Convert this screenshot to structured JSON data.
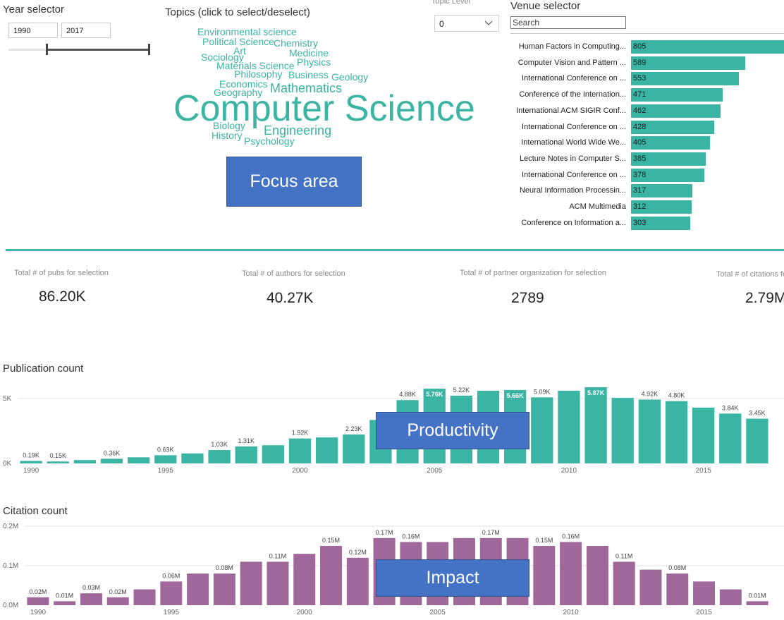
{
  "year_selector": {
    "title": "Year selector",
    "start": "1990",
    "end": "2017",
    "range_min": 1980,
    "range_max": 2017
  },
  "topics": {
    "title": "Topics (click to select/deselect)",
    "words": [
      "Environmental science",
      "Political Science",
      "Chemistry",
      "Art",
      "Medicine",
      "Sociology",
      "Physics",
      "Materials Science",
      "Philosophy",
      "Business",
      "Geology",
      "Economics",
      "Mathematics",
      "Geography",
      "Computer Science",
      "Biology",
      "Engineering",
      "History",
      "Psychology"
    ]
  },
  "topic_level": {
    "title": "Topic Level",
    "value": "0"
  },
  "venue_selector": {
    "title": "Venue selector",
    "search_placeholder": "Search",
    "venues": [
      {
        "name": "Human Factors in Computing...",
        "value": 805
      },
      {
        "name": "Computer Vision and Pattern ...",
        "value": 589
      },
      {
        "name": "International Conference on ...",
        "value": 553
      },
      {
        "name": "Conference of the Internation...",
        "value": 471
      },
      {
        "name": "International ACM SIGIR Conf...",
        "value": 462
      },
      {
        "name": "International Conference on ...",
        "value": 428
      },
      {
        "name": "International World Wide We...",
        "value": 405
      },
      {
        "name": "Lecture Notes in Computer S...",
        "value": 385
      },
      {
        "name": "International Conference on ...",
        "value": 378
      },
      {
        "name": "Neural Information Processin...",
        "value": 317
      },
      {
        "name": "ACM Multimedia",
        "value": 312
      },
      {
        "name": "Conference on Information a...",
        "value": 303
      }
    ]
  },
  "kpis": [
    {
      "label": "Total # of pubs for selection",
      "value": "86.20K"
    },
    {
      "label": "Total # of authors for selection",
      "value": "40.27K"
    },
    {
      "label": "Total # of partner organization for selection",
      "value": "2789"
    },
    {
      "label": "Total # of citations for selection",
      "value": "2.79M"
    }
  ],
  "overlays": {
    "focus": "Focus area",
    "productivity": "Productivity",
    "impact": "Impact"
  },
  "chart_data": [
    {
      "type": "bar",
      "title": "Publication count",
      "color": "#3ab5a4",
      "categories": [
        1990,
        1991,
        1992,
        1993,
        1994,
        1995,
        1996,
        1997,
        1998,
        1999,
        2000,
        2001,
        2002,
        2003,
        2004,
        2005,
        2006,
        2007,
        2008,
        2009,
        2010,
        2011,
        2012,
        2013,
        2014,
        2015,
        2016,
        2017
      ],
      "values": [
        190,
        150,
        260,
        360,
        470,
        630,
        770,
        1030,
        1310,
        1400,
        1920,
        2000,
        2230,
        3350,
        4880,
        5760,
        5220,
        5600,
        5660,
        5090,
        5600,
        5870,
        5050,
        4920,
        4800,
        4300,
        3840,
        3450
      ],
      "data_labels": [
        "0.19K",
        "0.15K",
        "",
        "0.36K",
        "",
        "0.63K",
        "",
        "1.03K",
        "1.31K",
        "",
        "1.92K",
        "",
        "2.23K",
        "",
        "4.88K",
        "5.76K",
        "5.22K",
        "",
        "5.66K",
        "5.09K",
        "",
        "5.87K",
        "",
        "4.92K",
        "4.80K",
        "",
        "3.84K",
        "3.45K"
      ],
      "ylim": [
        0,
        5870
      ],
      "y_ticks": [
        {
          "v": 0,
          "label": "0K"
        },
        {
          "v": 5000,
          "label": "5K"
        }
      ],
      "x_ticks": [
        "1990",
        "1995",
        "2000",
        "2005",
        "2010",
        "2015"
      ]
    },
    {
      "type": "bar",
      "title": "Citation count",
      "color": "#a0679a",
      "categories": [
        1990,
        1991,
        1992,
        1993,
        1994,
        1995,
        1996,
        1997,
        1998,
        1999,
        2000,
        2001,
        2002,
        2003,
        2004,
        2005,
        2006,
        2007,
        2008,
        2009,
        2010,
        2011,
        2012,
        2013,
        2014,
        2015,
        2016,
        2017
      ],
      "values": [
        0.02,
        0.01,
        0.03,
        0.02,
        0.04,
        0.06,
        0.08,
        0.08,
        0.11,
        0.11,
        0.13,
        0.15,
        0.12,
        0.17,
        0.16,
        0.16,
        0.17,
        0.17,
        0.17,
        0.15,
        0.16,
        0.15,
        0.11,
        0.09,
        0.08,
        0.06,
        0.04,
        0.01
      ],
      "data_labels": [
        "0.02M",
        "0.01M",
        "0.03M",
        "0.02M",
        "",
        "0.06M",
        "",
        "0.08M",
        "",
        "0.11M",
        "",
        "0.15M",
        "0.12M",
        "0.17M",
        "0.16M",
        "",
        "",
        "0.17M",
        "",
        "0.15M",
        "0.16M",
        "",
        "0.11M",
        "",
        "0.08M",
        "",
        "",
        "0.01M"
      ],
      "ylim": [
        0,
        0.2
      ],
      "y_ticks": [
        {
          "v": 0,
          "label": "0.0M"
        },
        {
          "v": 0.1,
          "label": "0.1M"
        },
        {
          "v": 0.2,
          "label": "0.2M"
        }
      ],
      "x_ticks": [
        "1990",
        "1995",
        "2000",
        "2005",
        "2010",
        "2015"
      ]
    }
  ]
}
